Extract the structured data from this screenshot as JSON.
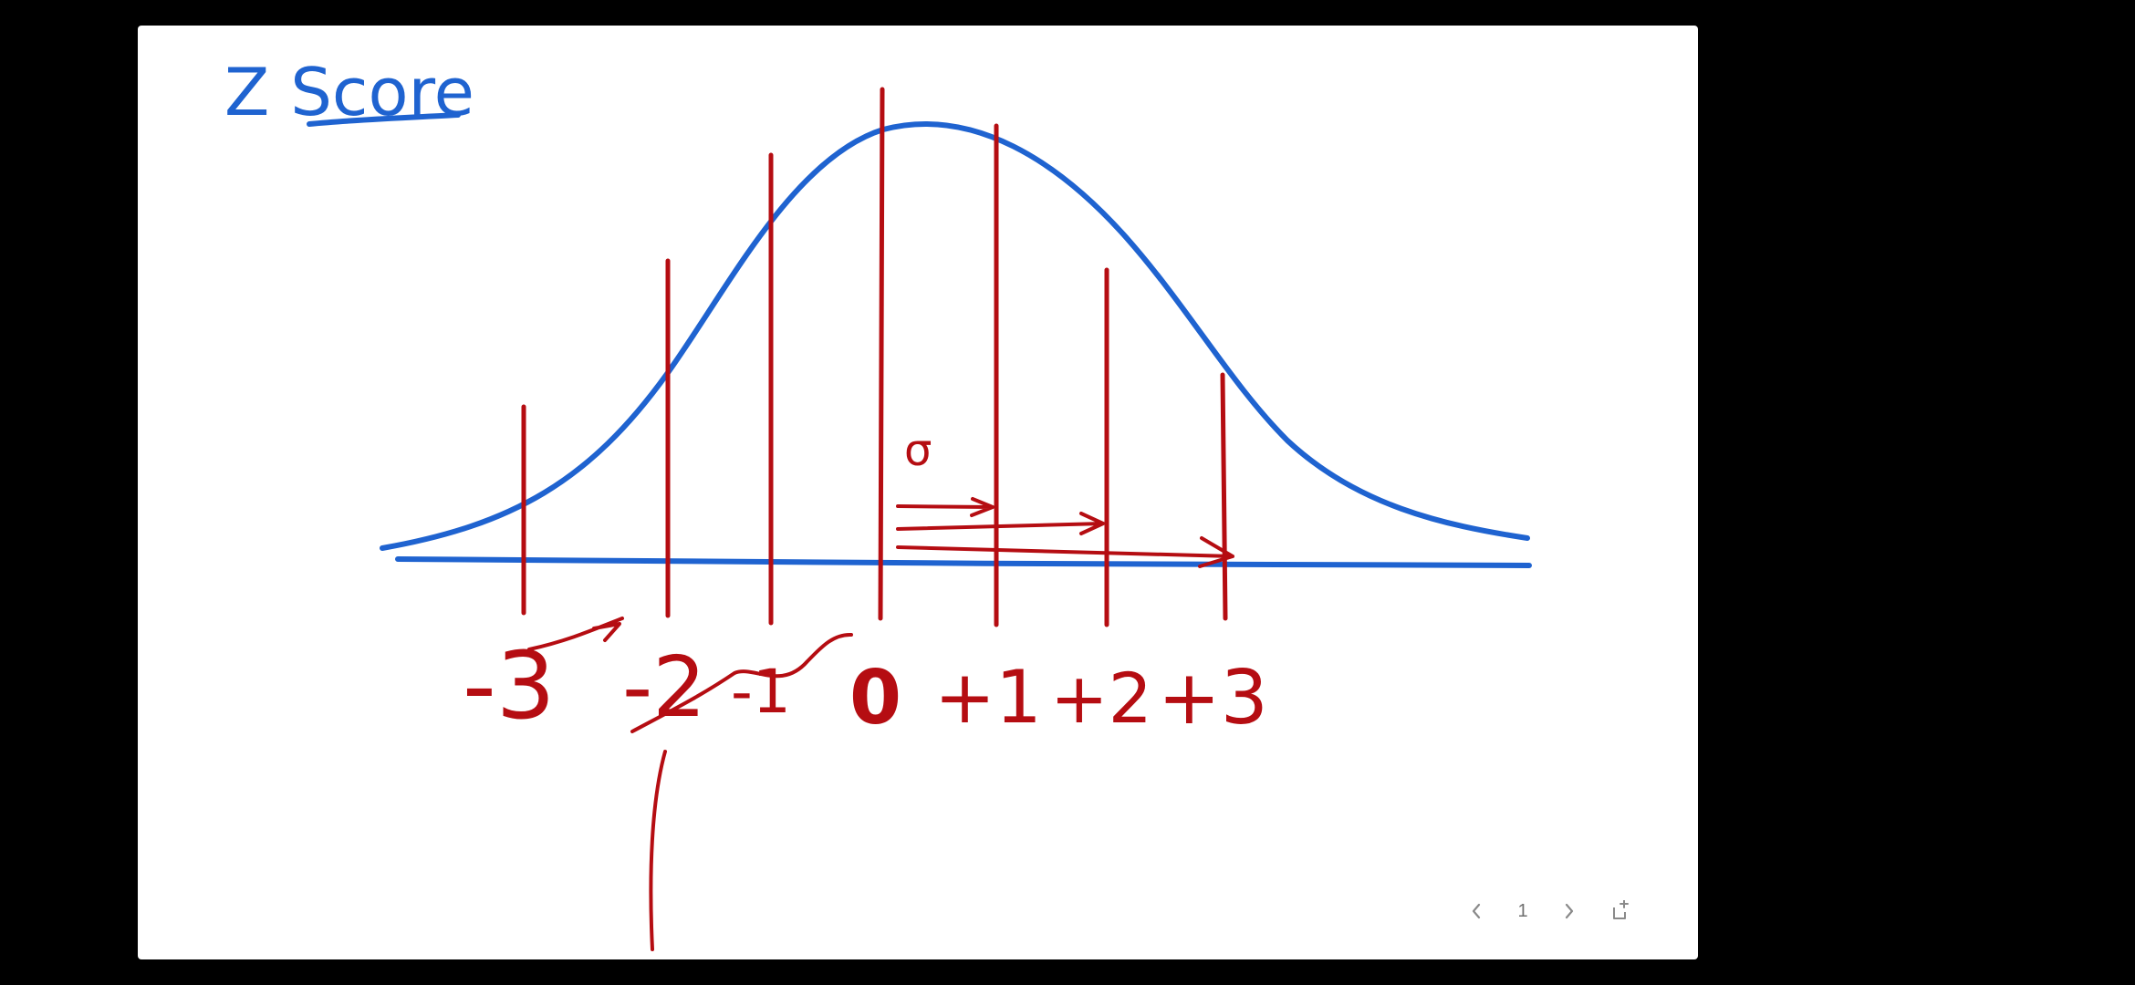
{
  "whiteboard": {
    "title": "Z Score",
    "sigma_symbol": "σ",
    "axis_labels": [
      "-3",
      "-2",
      "-1",
      "0",
      "+1",
      "+2",
      "+3"
    ]
  },
  "navigation": {
    "page_number": "1",
    "icons": {
      "previous": "chevron-left-icon",
      "next": "chevron-right-icon",
      "add_page": "new-page-icon"
    }
  },
  "colors": {
    "blue_ink": "#1f63d0",
    "red_ink": "#b50d12",
    "page": "#ffffff",
    "background": "#000000"
  }
}
